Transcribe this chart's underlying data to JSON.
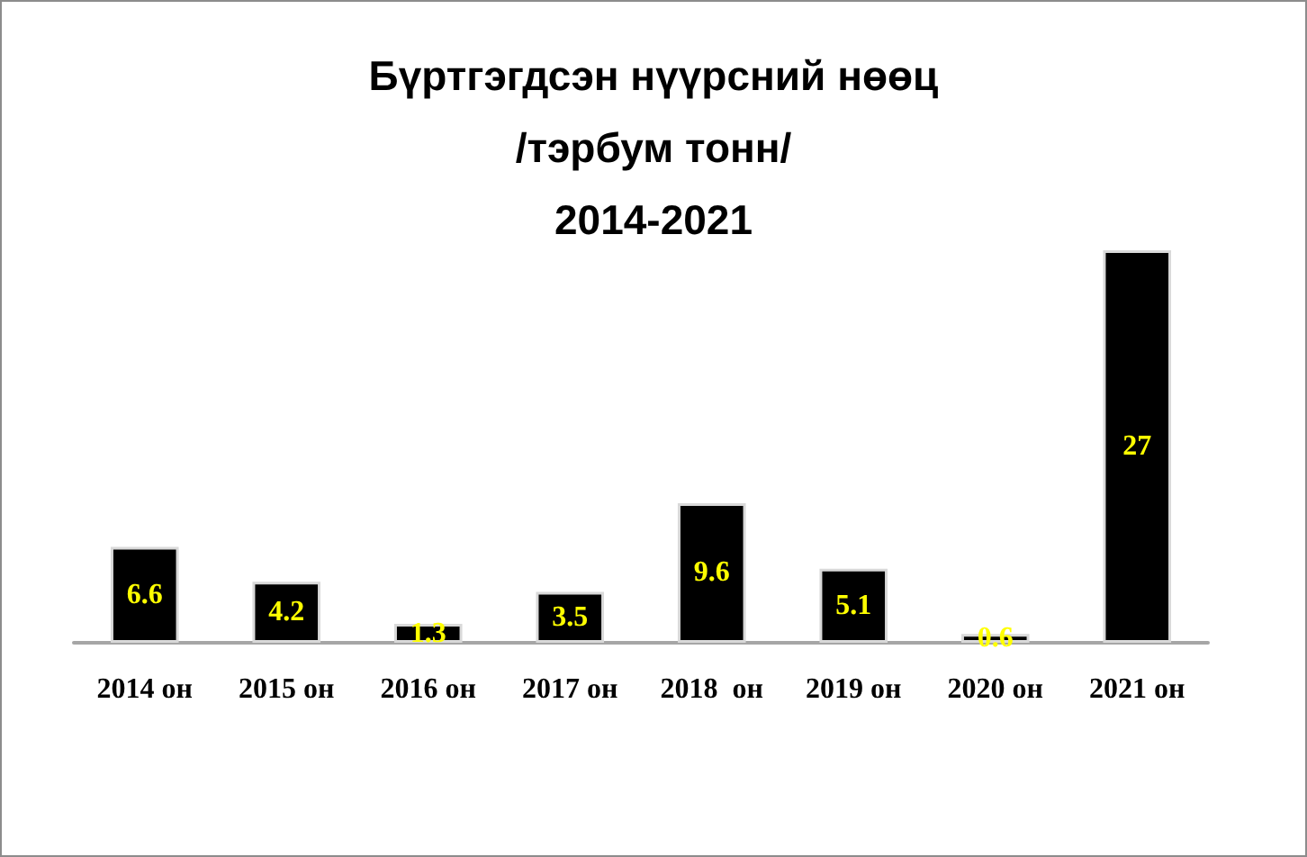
{
  "chart_data": {
    "type": "bar",
    "title": "Бүртгэгдсэн нүүрсний нөөц\n/тэрбум тонн/\n2014-2021",
    "categories": [
      "2014 он",
      "2015 он",
      "2016 он",
      "2017 он",
      "2018  он",
      "2019 он",
      "2020 он",
      "2021 он"
    ],
    "values": [
      6.6,
      4.2,
      1.3,
      3.5,
      9.6,
      5.1,
      0.6,
      27
    ],
    "color": "#000000",
    "data_labels": true,
    "tick_labels": "x"
  }
}
